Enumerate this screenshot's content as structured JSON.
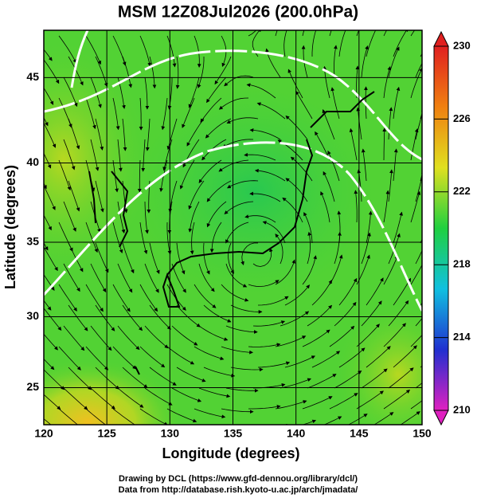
{
  "chart_data": {
    "type": "map",
    "title": "MSM 12Z08Jul2026 (200.0hPa)",
    "xlabel": "Longitude (degrees)",
    "ylabel": "Latitude  (degrees)",
    "xlim": [
      120,
      150
    ],
    "xticks": [
      120,
      125,
      130,
      135,
      140,
      145,
      150
    ],
    "ylim": [
      22.3,
      47.6
    ],
    "yticks": [
      25,
      30,
      35,
      40,
      45
    ],
    "y_scale": "mercator",
    "grid": true,
    "colorbar": {
      "lim": [
        210,
        230
      ],
      "ticks": [
        210,
        214,
        218,
        222,
        226,
        230
      ],
      "colors": [
        "#e020c0",
        "#2030d0",
        "#10c0e0",
        "#20d040",
        "#e0e020",
        "#f08010",
        "#e02020"
      ]
    },
    "footer": [
      "Drawing by DCL (https://www.gfd-dennou.org/library/dcl/)",
      "Data from http://database.rish.kyoto-u.ac.jp/arch/jmadata/"
    ]
  }
}
